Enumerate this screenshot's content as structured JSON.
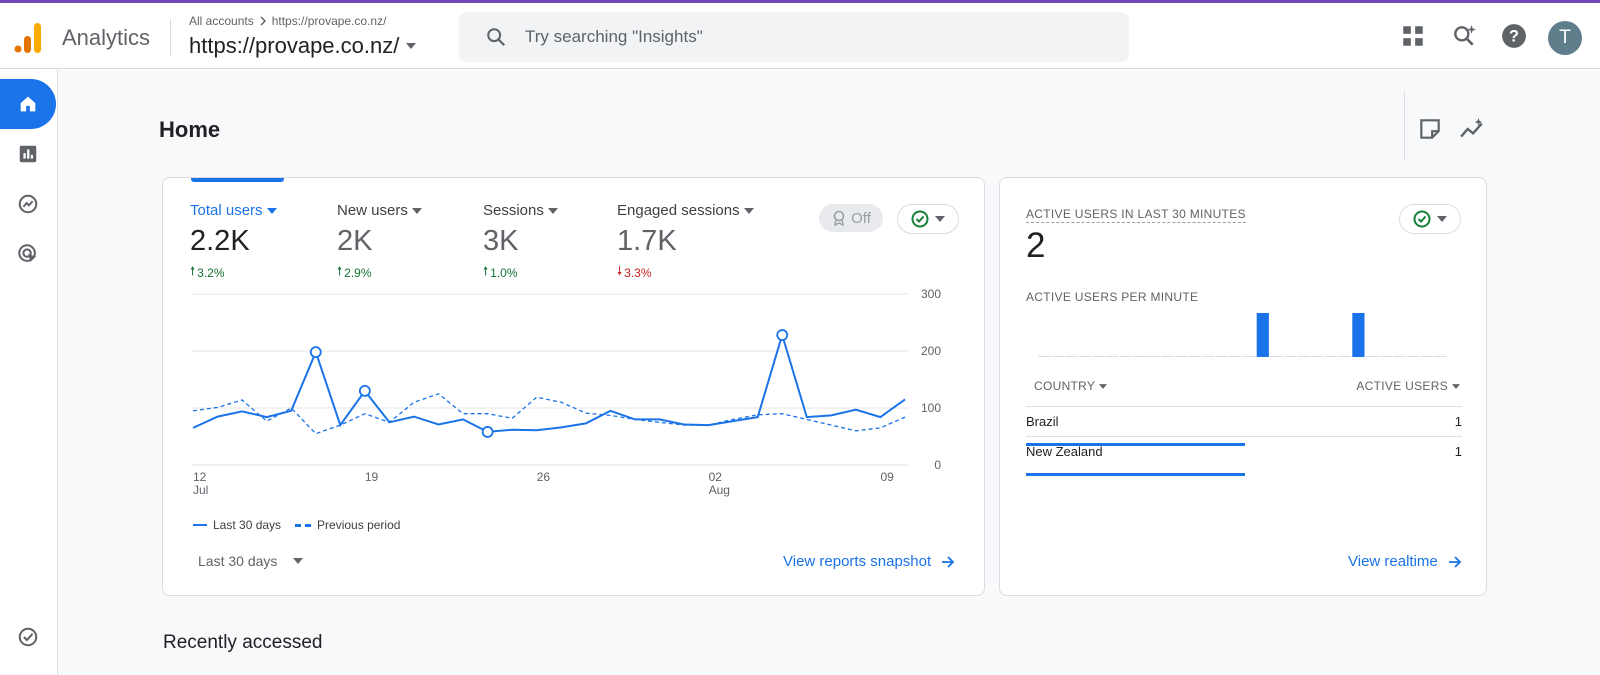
{
  "app": {
    "name": "Analytics"
  },
  "account": {
    "breadcrumb_root": "All accounts",
    "breadcrumb_property": "https://provape.co.nz/",
    "property": "https://provape.co.nz/"
  },
  "search": {
    "placeholder": "Try searching \"Insights\""
  },
  "header": {
    "avatar_letter": "T"
  },
  "page": {
    "title": "Home",
    "recent_title": "Recently accessed"
  },
  "metrics": [
    {
      "label": "Total users",
      "value": "2.2K",
      "change": "3.2%",
      "direction": "up"
    },
    {
      "label": "New users",
      "value": "2K",
      "change": "2.9%",
      "direction": "up"
    },
    {
      "label": "Sessions",
      "value": "3K",
      "change": "1.0%",
      "direction": "up"
    },
    {
      "label": "Engaged sessions",
      "value": "1.7K",
      "change": "3.3%",
      "direction": "down"
    }
  ],
  "main_card": {
    "off_label": "Off",
    "legend_current": "Last 30 days",
    "legend_previous": "Previous period",
    "date_range": "Last 30 days",
    "view_link": "View reports snapshot"
  },
  "chart_data": {
    "type": "line",
    "x_ticks": [
      {
        "day": "12",
        "month": "Jul",
        "index": 0
      },
      {
        "day": "19",
        "month": "",
        "index": 7
      },
      {
        "day": "26",
        "month": "",
        "index": 14
      },
      {
        "day": "02",
        "month": "Aug",
        "index": 21
      },
      {
        "day": "09",
        "month": "",
        "index": 28
      }
    ],
    "y_ticks": [
      "300",
      "200",
      "100",
      "0"
    ],
    "ylim": [
      0,
      300
    ],
    "series": [
      {
        "name": "Last 30 days",
        "style": "solid",
        "values": [
          65,
          85,
          94,
          84,
          95,
          198,
          70,
          130,
          75,
          85,
          71,
          80,
          58,
          62,
          61,
          66,
          73,
          95,
          80,
          80,
          71,
          70,
          77,
          84,
          228,
          84,
          87,
          97,
          84,
          115
        ],
        "markers": [
          5,
          7,
          12,
          24
        ]
      },
      {
        "name": "Previous period",
        "style": "dashed",
        "values": [
          95,
          101,
          114,
          77,
          100,
          55,
          70,
          90,
          75,
          110,
          125,
          90,
          90,
          82,
          119,
          110,
          91,
          87,
          80,
          75,
          70,
          70,
          80,
          88,
          90,
          80,
          70,
          60,
          65,
          84
        ]
      }
    ],
    "color": "#1a73e8"
  },
  "realtime": {
    "title": "ACTIVE USERS IN LAST 30 MINUTES",
    "count": "2",
    "per_minute_title": "ACTIVE USERS PER MINUTE",
    "per_minute": [
      0,
      0,
      0,
      0,
      0,
      0,
      0,
      0,
      0,
      0,
      0,
      0,
      0,
      0,
      0,
      0,
      1,
      0,
      0,
      0,
      0,
      0,
      0,
      1,
      0,
      0,
      0,
      0,
      0,
      0
    ],
    "col_country": "COUNTRY",
    "col_users": "ACTIVE USERS",
    "rows": [
      {
        "country": "Brazil",
        "users": "1",
        "fraction": 0.5
      },
      {
        "country": "New Zealand",
        "users": "1",
        "fraction": 0.5
      }
    ],
    "view_link": "View realtime"
  }
}
